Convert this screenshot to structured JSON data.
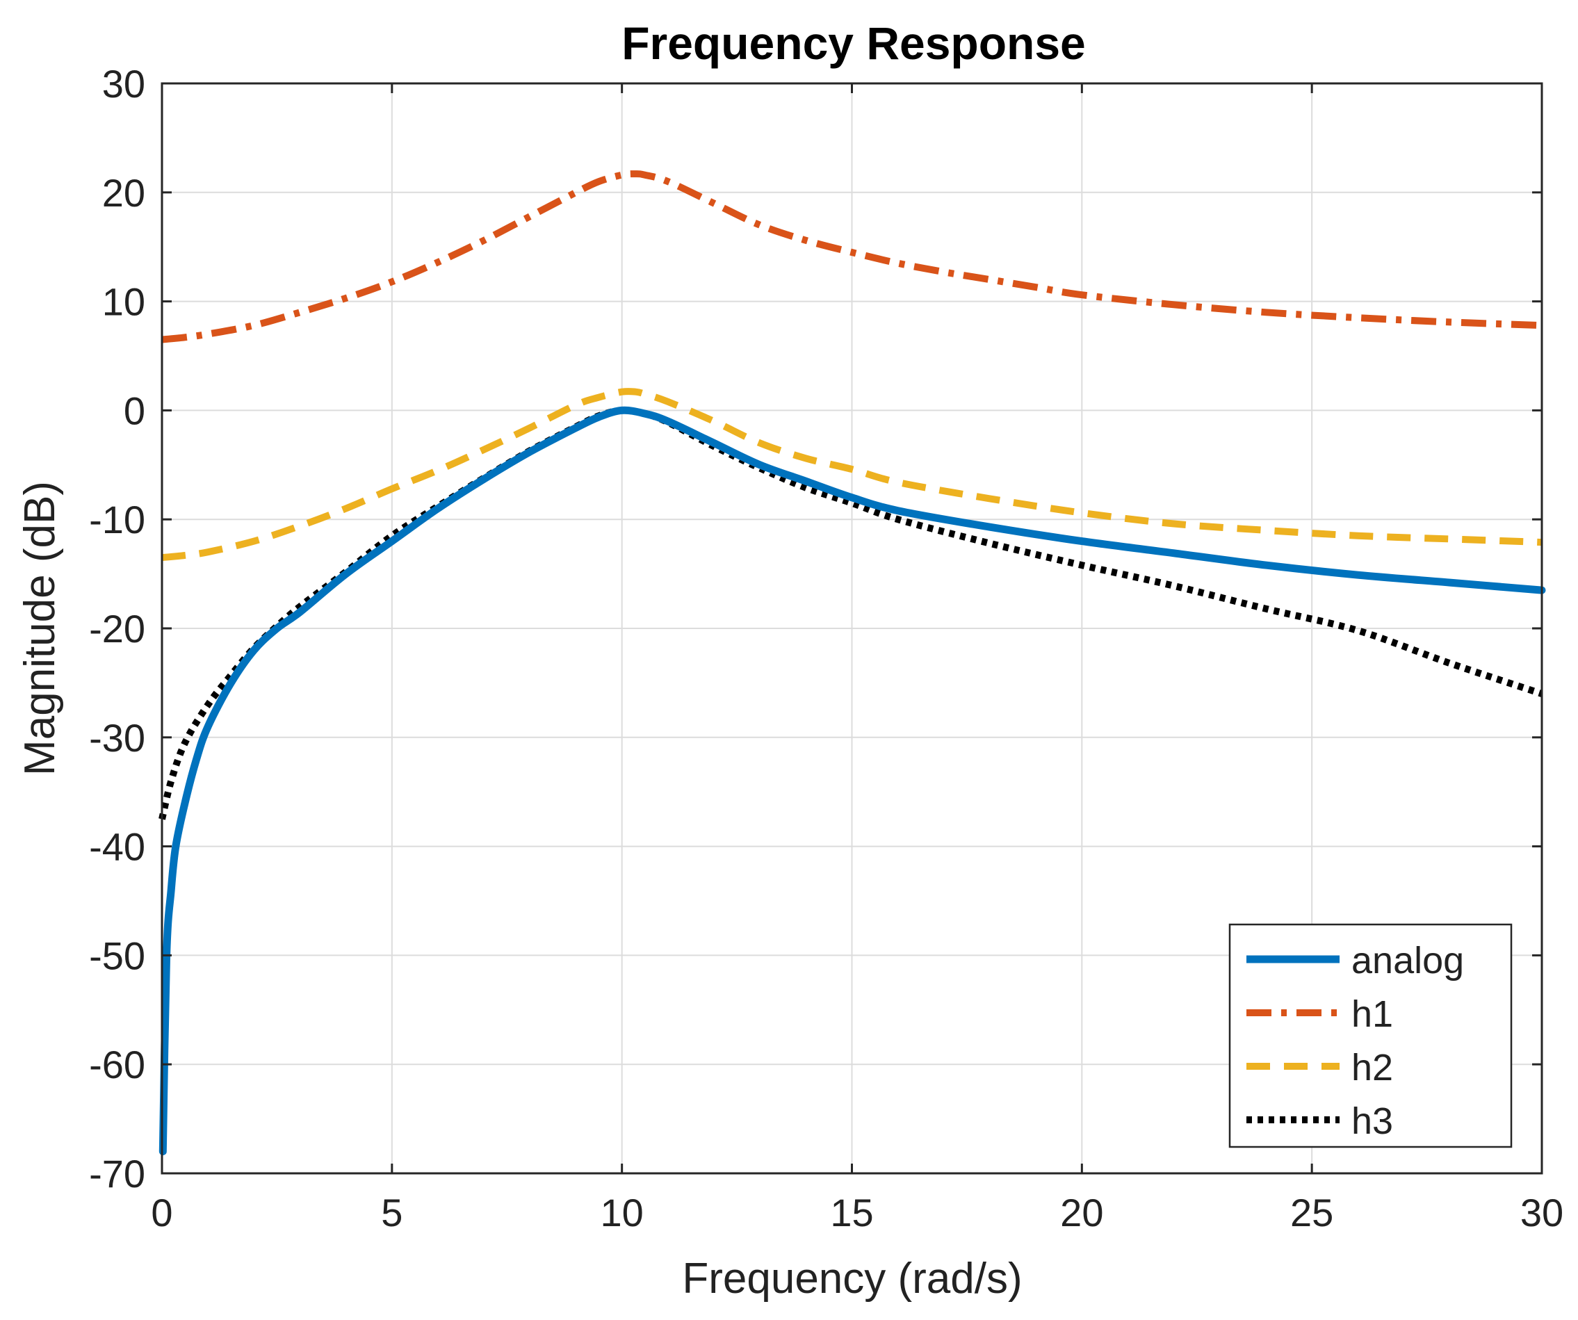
{
  "chart_data": {
    "type": "line",
    "title": "Frequency Response",
    "xlabel": "Frequency (rad/s)",
    "ylabel": "Magnitude (dB)",
    "xlim": [
      0,
      30
    ],
    "ylim": [
      -70,
      30
    ],
    "xticks": [
      0,
      5,
      10,
      15,
      20,
      25,
      30
    ],
    "yticks": [
      -70,
      -60,
      -50,
      -40,
      -30,
      -20,
      -10,
      0,
      10,
      20,
      30
    ],
    "grid": true,
    "legend_position": "bottom-right",
    "series": [
      {
        "name": "analog",
        "color": "#0072BD",
        "style": "solid",
        "x": [
          0.02,
          0.1,
          0.2,
          0.3,
          0.5,
          0.75,
          1,
          1.5,
          2,
          2.5,
          3,
          4,
          5,
          6,
          7,
          8,
          9,
          9.5,
          10,
          10.5,
          11,
          12,
          13,
          14,
          15,
          16,
          18,
          20,
          22,
          24,
          26,
          28,
          30
        ],
        "y": [
          -68,
          -50,
          -44,
          -40,
          -36,
          -32,
          -29,
          -25,
          -22,
          -20,
          -18.5,
          -15,
          -12,
          -9,
          -6.3,
          -3.8,
          -1.6,
          -0.6,
          0,
          -0.3,
          -1,
          -3,
          -5,
          -6.5,
          -8,
          -9.2,
          -10.7,
          -12,
          -13.1,
          -14.2,
          -15.1,
          -15.8,
          -16.5
        ]
      },
      {
        "name": "h1",
        "color": "#D95319",
        "style": "dashdot",
        "x": [
          0,
          0.5,
          1,
          2,
          3,
          4,
          5,
          6,
          7,
          8,
          9,
          9.5,
          10,
          10.3,
          10.5,
          11,
          12,
          13,
          14,
          15,
          16,
          17,
          18,
          19,
          20,
          22,
          24,
          26,
          28,
          30
        ],
        "y": [
          6.5,
          6.7,
          7,
          7.8,
          9,
          10.3,
          11.8,
          13.6,
          15.6,
          17.8,
          20,
          21,
          21.6,
          21.7,
          21.6,
          21,
          19,
          17,
          15.6,
          14.5,
          13.5,
          12.7,
          12,
          11.3,
          10.6,
          9.7,
          9,
          8.5,
          8.1,
          7.8
        ]
      },
      {
        "name": "h2",
        "color": "#EDB120",
        "style": "dashed",
        "x": [
          0,
          0.5,
          1,
          2,
          3,
          4,
          5,
          6,
          7,
          8,
          9,
          9.5,
          10,
          10.3,
          10.5,
          11,
          12,
          13,
          14,
          15,
          16,
          18,
          20,
          22,
          24,
          26,
          28,
          30
        ],
        "y": [
          -13.5,
          -13.3,
          -13,
          -12,
          -10.6,
          -9,
          -7.2,
          -5.5,
          -3.6,
          -1.6,
          0.5,
          1.2,
          1.7,
          1.7,
          1.5,
          0.8,
          -1,
          -3,
          -4.4,
          -5.4,
          -6.6,
          -8.1,
          -9.4,
          -10.4,
          -11,
          -11.5,
          -11.8,
          -12.1
        ]
      },
      {
        "name": "h3",
        "color": "#000000",
        "style": "dotted",
        "x": [
          0,
          0.2,
          0.5,
          1,
          1.5,
          2,
          2.5,
          3,
          4,
          5,
          6,
          7,
          8,
          9,
          9.5,
          10,
          10.5,
          11,
          12,
          13,
          14,
          15,
          16,
          18,
          20,
          22,
          24,
          26,
          28,
          30
        ],
        "y": [
          -37.5,
          -34,
          -30.5,
          -27,
          -24.3,
          -21.8,
          -19.8,
          -18,
          -14.8,
          -11.5,
          -8.8,
          -6.2,
          -3.7,
          -1.5,
          -0.5,
          0,
          -0.3,
          -1.1,
          -3.3,
          -5.3,
          -7.1,
          -8.5,
          -10,
          -12.2,
          -14.2,
          -16.1,
          -18.2,
          -20.2,
          -23.2,
          -26
        ]
      }
    ]
  }
}
